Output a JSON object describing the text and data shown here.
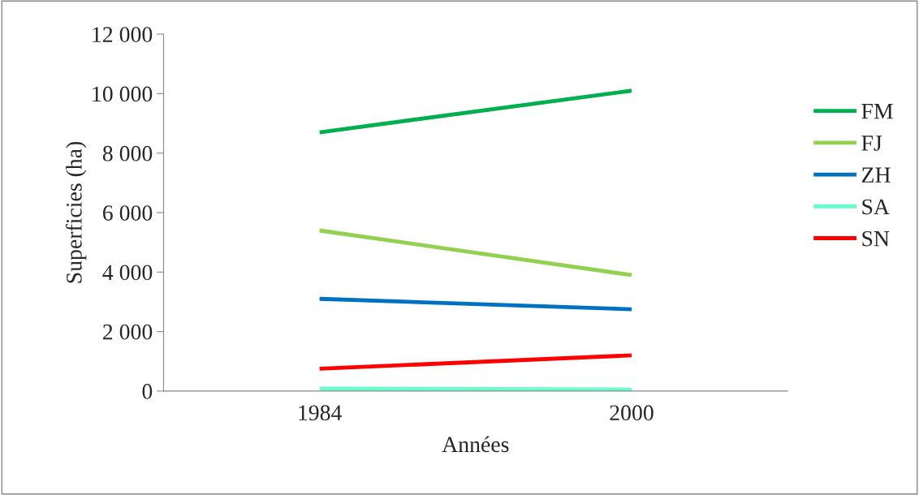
{
  "chart_data": {
    "type": "line",
    "xlabel": "Années",
    "ylabel": "Superficies (ha)",
    "categories": [
      "1984",
      "2000"
    ],
    "series": [
      {
        "name": "FM",
        "color": "#00b050",
        "values": [
          8700,
          10100
        ]
      },
      {
        "name": "FJ",
        "color": "#92d050",
        "values": [
          5400,
          3900
        ]
      },
      {
        "name": "ZH",
        "color": "#0070c0",
        "values": [
          3100,
          2750
        ]
      },
      {
        "name": "SA",
        "color": "#66ffcc",
        "values": [
          80,
          50
        ]
      },
      {
        "name": "SN",
        "color": "#ff0000",
        "values": [
          750,
          1200
        ]
      }
    ],
    "ylim": [
      0,
      12000
    ],
    "yticks": [
      {
        "value": 0,
        "label": "0"
      },
      {
        "value": 2000,
        "label": "2 000"
      },
      {
        "value": 4000,
        "label": "4 000"
      },
      {
        "value": 6000,
        "label": "6 000"
      },
      {
        "value": 8000,
        "label": "8 000"
      },
      {
        "value": 10000,
        "label": "10 000"
      },
      {
        "value": 12000,
        "label": "12 000"
      }
    ],
    "grid": false,
    "legend": "right",
    "marker": "none",
    "line_style": "solid"
  }
}
